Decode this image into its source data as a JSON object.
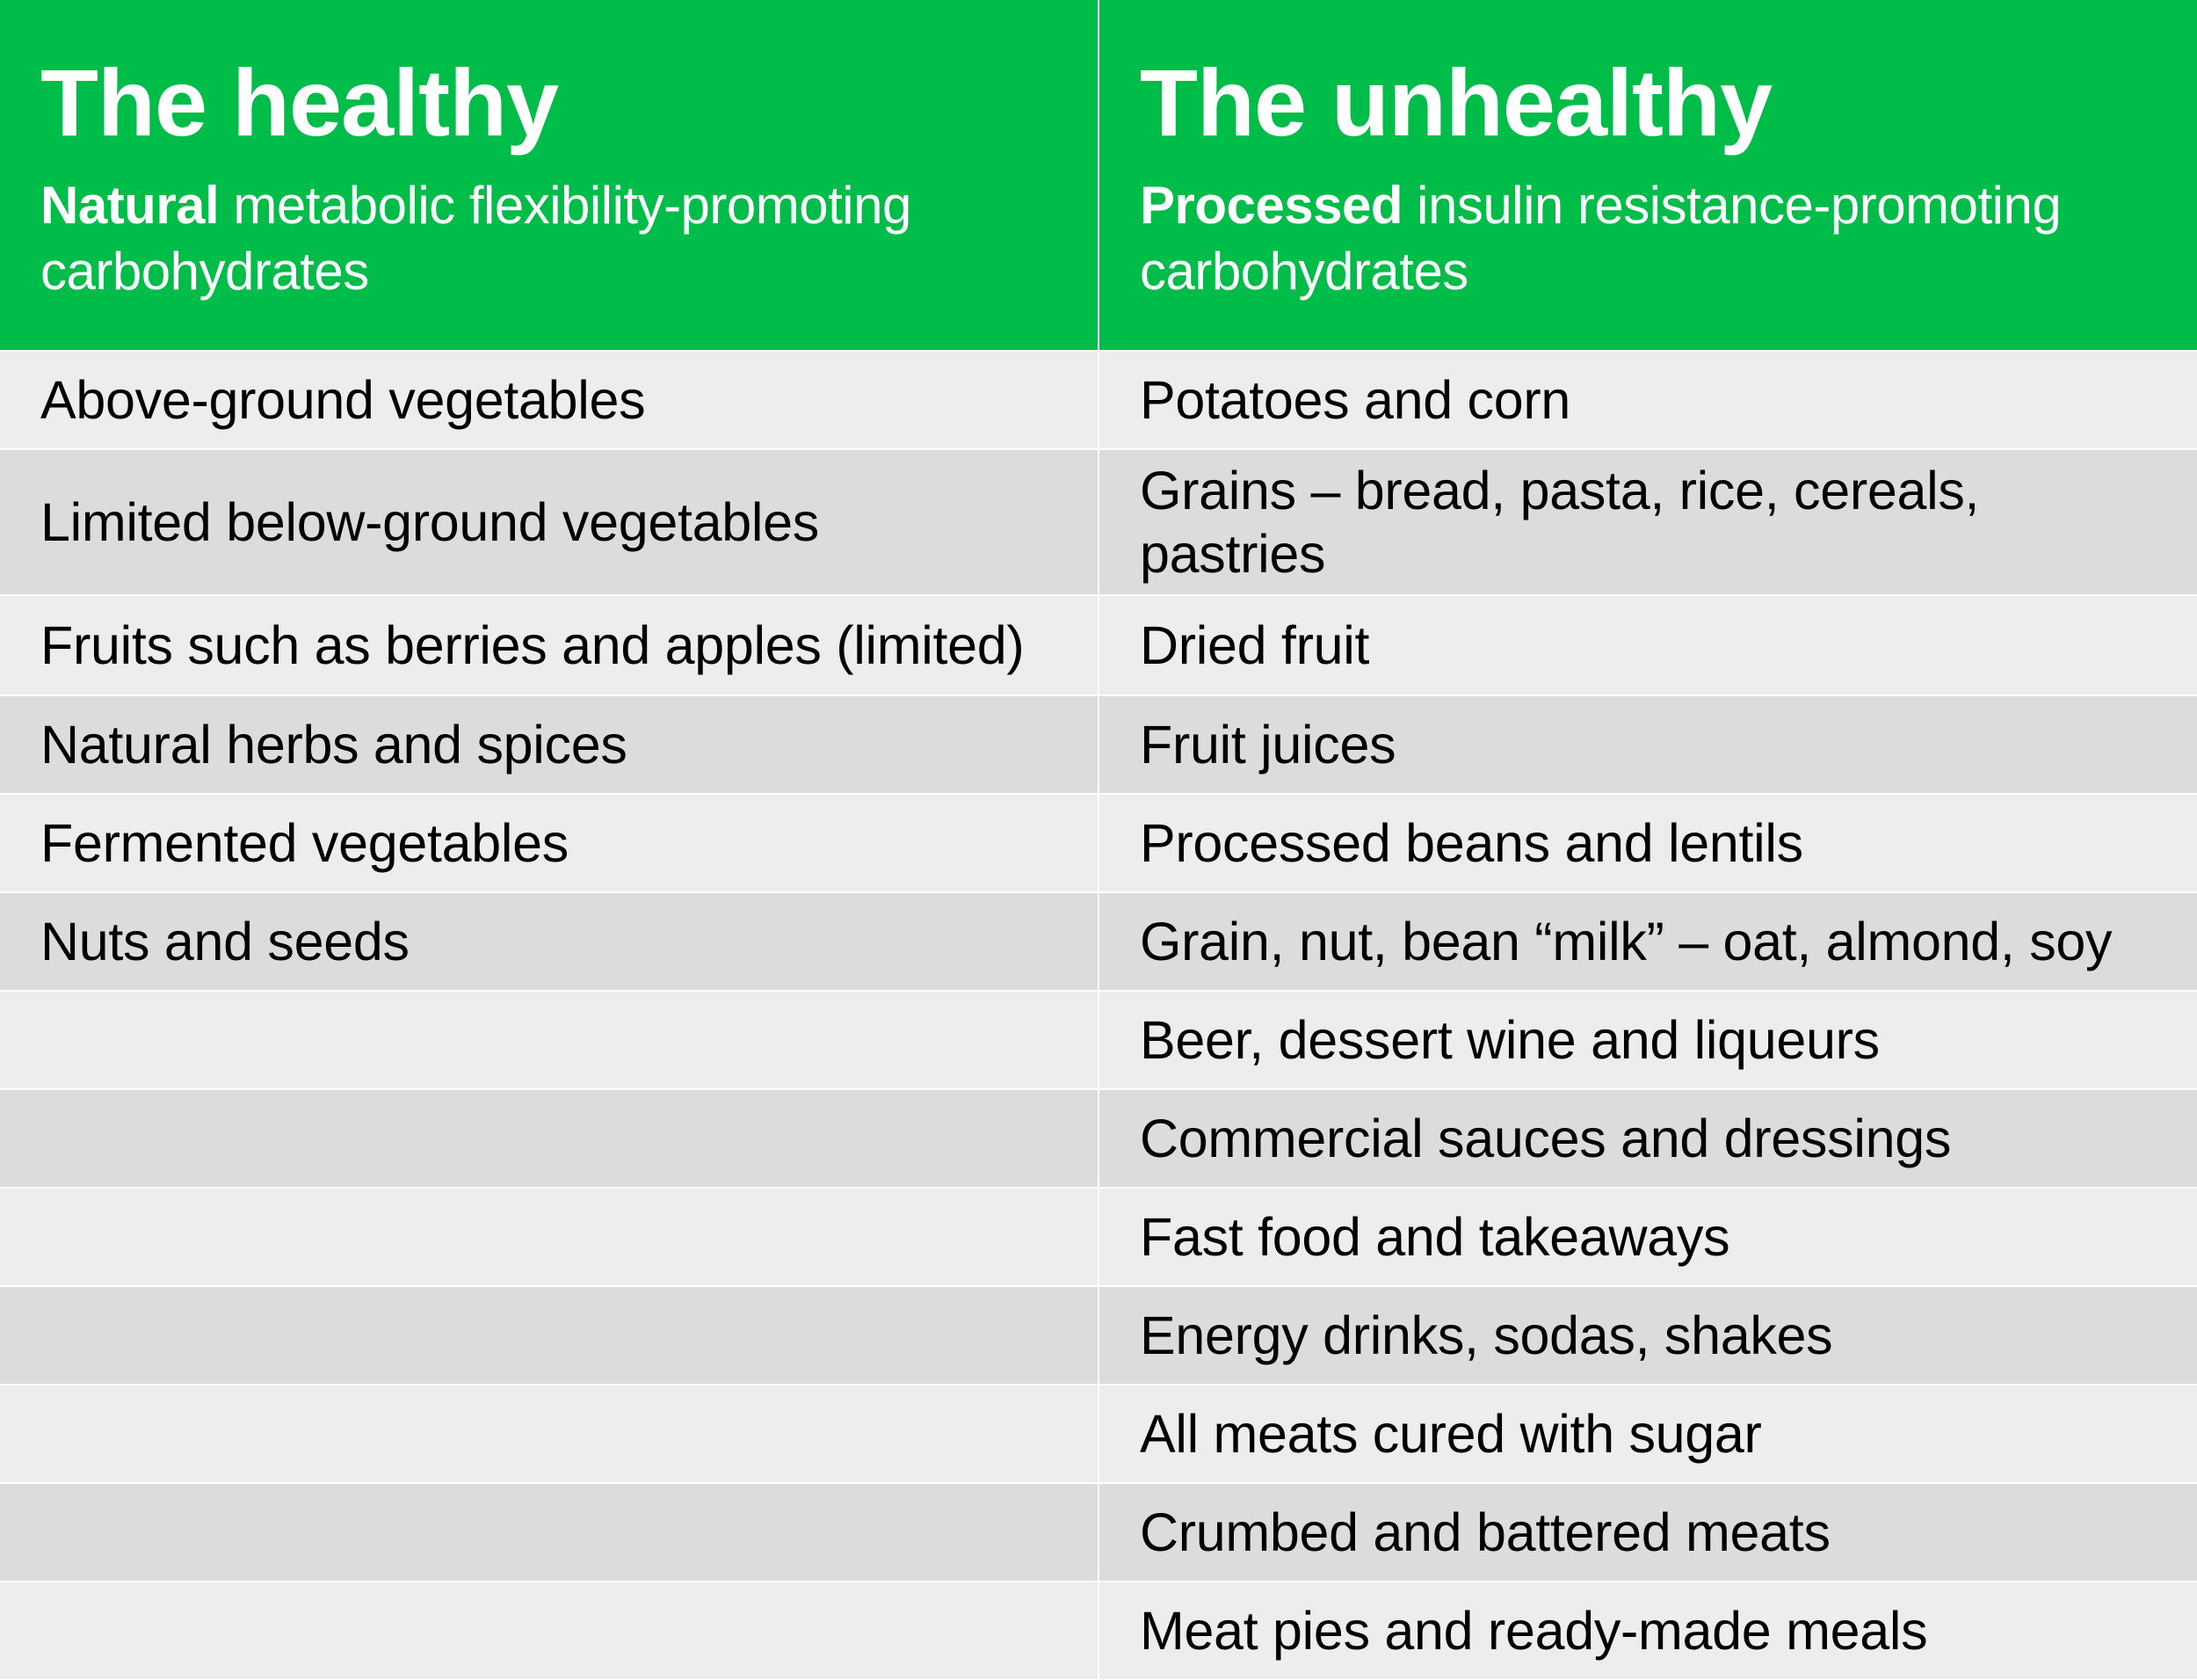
{
  "colors": {
    "header_bg": "#00BC48",
    "row_light": "#EDEDED",
    "row_dark": "#DCDCDC",
    "divider": "#FFFFFF",
    "text": "#000000",
    "header_text": "#FFFFFF"
  },
  "columns": [
    {
      "title": "The healthy",
      "subtitle_bold": "Natural",
      "subtitle_rest": " metabolic flexibility-promoting carbohydrates"
    },
    {
      "title": "The unhealthy",
      "subtitle_bold": "Processed",
      "subtitle_rest": " insulin resistance-promoting carbohydrates"
    }
  ],
  "rows": [
    {
      "healthy": "Above-ground vegetables",
      "unhealthy": "Potatoes and corn"
    },
    {
      "healthy": "Limited below-ground vegetables",
      "unhealthy": "Grains – bread, pasta, rice, cereals, pastries"
    },
    {
      "healthy": "Fruits such as berries and apples (limited)",
      "unhealthy": "Dried fruit"
    },
    {
      "healthy": "Natural herbs and spices",
      "unhealthy": "Fruit juices"
    },
    {
      "healthy": "Fermented vegetables",
      "unhealthy": "Processed beans and lentils"
    },
    {
      "healthy": "Nuts and seeds",
      "unhealthy": "Grain, nut, bean “milk” – oat, almond, soy"
    },
    {
      "healthy": "",
      "unhealthy": "Beer, dessert wine and liqueurs"
    },
    {
      "healthy": "",
      "unhealthy": "Commercial sauces and dressings"
    },
    {
      "healthy": "",
      "unhealthy": "Fast food and takeaways"
    },
    {
      "healthy": "",
      "unhealthy": "Energy drinks, sodas, shakes"
    },
    {
      "healthy": "",
      "unhealthy": "All meats cured with sugar"
    },
    {
      "healthy": "",
      "unhealthy": "Crumbed and battered meats"
    },
    {
      "healthy": "",
      "unhealthy": "Meat pies and ready-made meals"
    }
  ]
}
